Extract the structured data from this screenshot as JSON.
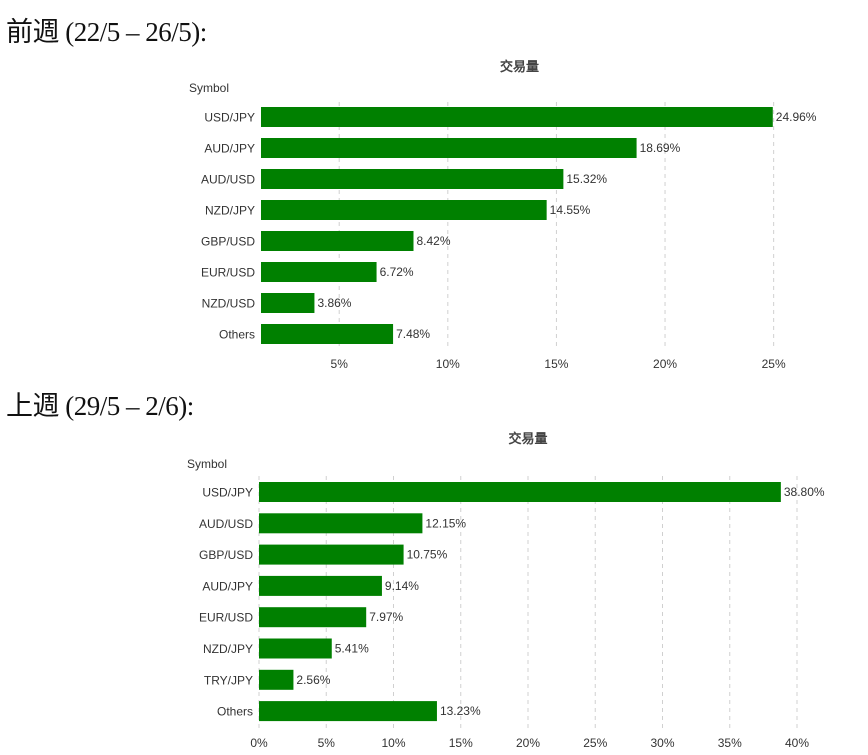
{
  "sections": [
    {
      "heading": "前週 (22/5 – 26/5):"
    },
    {
      "heading": "上週 (29/5 – 2/6):"
    }
  ],
  "bar_color": "#008000",
  "chart_data": [
    {
      "type": "bar",
      "orientation": "horizontal",
      "title": "交易量",
      "ylabel": "Symbol",
      "categories": [
        "USD/JPY",
        "AUD/JPY",
        "AUD/USD",
        "NZD/JPY",
        "GBP/USD",
        "EUR/USD",
        "NZD/USD",
        "Others"
      ],
      "values": [
        24.96,
        18.69,
        15.32,
        14.55,
        8.42,
        6.72,
        3.86,
        7.48
      ],
      "value_labels": [
        "24.96%",
        "18.69%",
        "15.32%",
        "14.55%",
        "8.42%",
        "6.72%",
        "3.86%",
        "7.48%"
      ],
      "xlim": [
        1.4,
        25.2
      ],
      "xticks": [
        5,
        10,
        15,
        20,
        25
      ],
      "xtick_labels": [
        "5%",
        "10%",
        "15%",
        "20%",
        "25%"
      ],
      "grid": true
    },
    {
      "type": "bar",
      "orientation": "horizontal",
      "title": "交易量",
      "ylabel": "Symbol",
      "categories": [
        "USD/JPY",
        "AUD/USD",
        "GBP/USD",
        "AUD/JPY",
        "EUR/USD",
        "NZD/JPY",
        "TRY/JPY",
        "Others"
      ],
      "values": [
        38.8,
        12.15,
        10.75,
        9.14,
        7.97,
        5.41,
        2.56,
        13.23
      ],
      "value_labels": [
        "38.80%",
        "12.15%",
        "10.75%",
        "9.14%",
        "7.97%",
        "5.41%",
        "2.56%",
        "13.23%"
      ],
      "xlim": [
        0,
        40
      ],
      "xticks": [
        0,
        5,
        10,
        15,
        20,
        25,
        30,
        35,
        40
      ],
      "xtick_labels": [
        "0%",
        "5%",
        "10%",
        "15%",
        "20%",
        "25%",
        "30%",
        "35%",
        "40%"
      ],
      "grid": true
    }
  ]
}
